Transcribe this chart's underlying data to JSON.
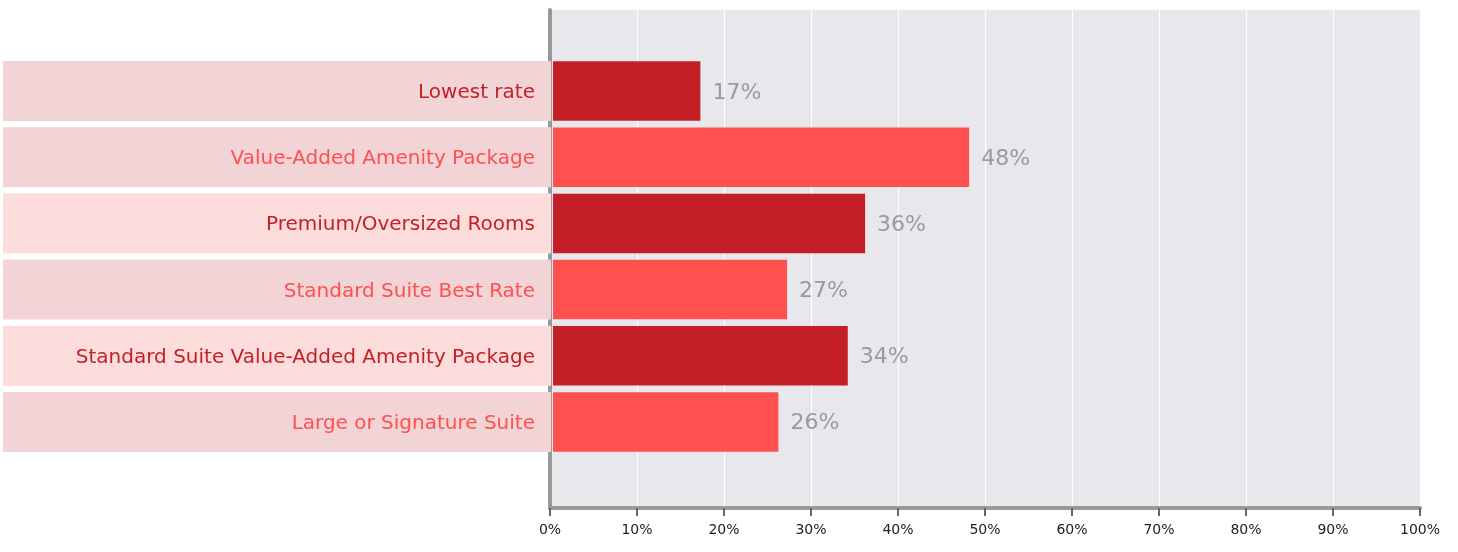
{
  "chart_data": {
    "type": "bar",
    "orientation": "horizontal",
    "categories": [
      "Lowest rate",
      "Value-Added Amenity Package",
      "Premium/Oversized Rooms",
      "Standard Suite Best Rate",
      "Standard Suite Value-Added Amenity Package",
      "Large or Signature Suite"
    ],
    "values": [
      17,
      48,
      36,
      27,
      34,
      26
    ],
    "colors": [
      "#c41f26",
      "#ff5050",
      "#c41f26",
      "#ff5050",
      "#c41f26",
      "#ff5050"
    ],
    "value_labels": [
      "17%",
      "48%",
      "36%",
      "27%",
      "34%",
      "26%"
    ],
    "xlim": [
      0,
      100
    ],
    "xticks": [
      {
        "value": 0,
        "label": "0%"
      },
      {
        "value": 10,
        "label": "10%"
      },
      {
        "value": 20,
        "label": "20%"
      },
      {
        "value": 30,
        "label": "30%"
      },
      {
        "value": 40,
        "label": "40%"
      },
      {
        "value": 50,
        "label": "50%"
      },
      {
        "value": 60,
        "label": "60%"
      },
      {
        "value": 70,
        "label": "70%"
      },
      {
        "value": 80,
        "label": "80%"
      },
      {
        "value": 90,
        "label": "90%"
      },
      {
        "value": 100,
        "label": "100%"
      }
    ],
    "grid": "x"
  }
}
